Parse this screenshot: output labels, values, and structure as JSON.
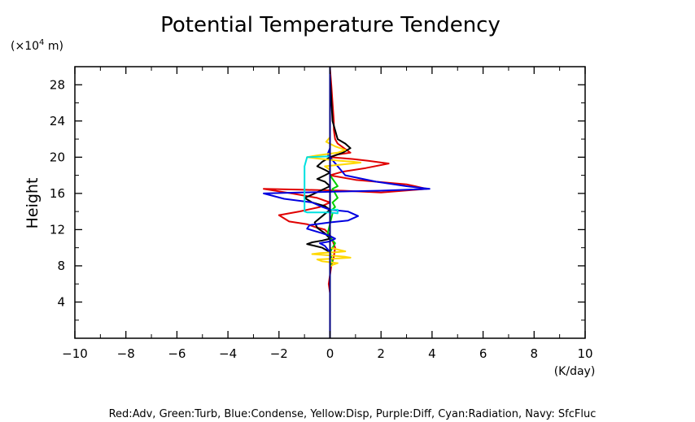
{
  "chart_data": {
    "type": "line",
    "title": "Potential Temperature Tendency",
    "xlabel": "",
    "ylabel": "Height",
    "x_unit_label": "(K/day)",
    "y_unit_label_prefix": "(×10",
    "y_unit_label_exp": "4",
    "y_unit_label_suffix": " m)",
    "xlim": [
      -10,
      10
    ],
    "ylim": [
      0,
      30
    ],
    "x_ticks": [
      "−10",
      "−8",
      "−6",
      "−4",
      "−2",
      "0",
      "2",
      "4",
      "6",
      "8",
      "10"
    ],
    "y_ticks": [
      "4",
      "8",
      "12",
      "16",
      "20",
      "24",
      "28"
    ],
    "footnote": "Red:Adv, Green:Turb, Blue:Condense, Yellow:Disp, Purple:Diff, Cyan:Radiation, Navy: SfcFluc",
    "series": [
      {
        "color": "#e00000",
        "x": [
          0,
          0.05,
          0.1,
          0.15,
          0.15,
          0.2,
          0.3,
          0.55,
          0.8,
          0.3,
          0.0,
          0.9,
          1.5,
          2.3,
          1.4,
          0.5,
          0.0,
          1.0,
          3.0,
          3.8,
          2.0,
          0.5,
          -1.0,
          -2.6,
          -1.5,
          -0.5,
          0.0,
          -0.4,
          -1.2,
          -2.0,
          -1.6,
          -0.9,
          -0.6,
          -0.2,
          0.0,
          0.1,
          0.2,
          0.15,
          0.05,
          0.0,
          -0.05,
          0.0,
          0.0
        ],
        "y": [
          29.8,
          28.0,
          26.0,
          24.0,
          23.0,
          22.0,
          21.5,
          21.0,
          20.5,
          20.3,
          20.0,
          19.8,
          19.6,
          19.3,
          18.8,
          18.4,
          18.0,
          17.5,
          17.0,
          16.5,
          16.1,
          16.3,
          16.4,
          16.5,
          16.0,
          15.5,
          15.0,
          14.5,
          14.0,
          13.6,
          12.9,
          12.6,
          12.3,
          12.0,
          11.4,
          10.8,
          10.0,
          9.0,
          8.0,
          7.0,
          6.0,
          5.0,
          0.3
        ]
      },
      {
        "color": "#000000",
        "x": [
          0,
          0.1,
          0.3,
          0.6,
          0.8,
          0.5,
          0.0,
          -0.3,
          -0.5,
          -0.2,
          0.0,
          -0.2,
          -0.5,
          -0.2,
          0.0,
          -0.3,
          -0.6,
          -1.0,
          -0.7,
          -0.2,
          0.0,
          -0.3,
          -0.6,
          -0.5,
          -0.2,
          0.0,
          -0.3,
          -0.7,
          -0.9,
          -0.6,
          -0.3,
          0.0,
          0.0
        ],
        "y": [
          29.0,
          24.0,
          22.0,
          21.5,
          21.0,
          20.5,
          20.0,
          19.5,
          19.0,
          18.6,
          18.3,
          18.0,
          17.6,
          17.3,
          16.8,
          16.4,
          16.0,
          15.5,
          15.0,
          14.6,
          14.2,
          13.5,
          12.8,
          12.2,
          11.6,
          11.0,
          10.8,
          10.6,
          10.4,
          10.2,
          10.0,
          9.5,
          0.5
        ]
      },
      {
        "color": "#00d000",
        "x": [
          0,
          0.2,
          0.3,
          0.1,
          0.2,
          0.3,
          0.1,
          0.2,
          0.0,
          0.1,
          -0.1,
          0.2,
          0.0,
          0.1,
          0.0,
          0.0
        ],
        "y": [
          18.0,
          17.2,
          16.8,
          16.5,
          16.0,
          15.5,
          15.0,
          14.5,
          14.0,
          13.8,
          11.5,
          10.5,
          9.5,
          8.5,
          8.0,
          7.5
        ]
      },
      {
        "color": "#0000e0",
        "x": [
          0,
          -0.1,
          0.0,
          0.6,
          1.8,
          3.0,
          3.9,
          2.0,
          0.3,
          -1.2,
          -2.6,
          -1.8,
          -0.7,
          -0.3,
          0.0,
          0.7,
          1.1,
          0.7,
          0.0,
          -0.8,
          -0.9,
          -0.3,
          0.0,
          0.2,
          0.0,
          -0.4,
          -0.2,
          0.0,
          0.0
        ],
        "y": [
          21.0,
          20.3,
          20.0,
          18.0,
          17.3,
          16.8,
          16.5,
          16.3,
          16.2,
          16.1,
          16.0,
          15.4,
          15.0,
          14.5,
          14.2,
          14.0,
          13.5,
          13.0,
          12.8,
          12.5,
          12.1,
          11.6,
          11.3,
          11.0,
          10.7,
          10.5,
          10.2,
          9.5,
          9.0
        ]
      },
      {
        "color": "#ffd800",
        "x": [
          0,
          -0.15,
          0.2,
          0.6,
          0.3,
          -0.5,
          -0.9,
          -0.3,
          0.4,
          0.9,
          1.2,
          0.5,
          -0.2,
          0.0,
          0.0,
          0.3,
          0.6,
          0.2,
          -0.4,
          -0.7,
          -0.2,
          0.6,
          0.8,
          0.2,
          -0.5,
          -0.3,
          0.3,
          0.1,
          0.0
        ],
        "y": [
          22.2,
          21.7,
          21.2,
          20.8,
          20.5,
          20.2,
          20.0,
          19.8,
          19.6,
          19.5,
          19.4,
          19.2,
          19.0,
          18.6,
          10.0,
          9.8,
          9.6,
          9.5,
          9.4,
          9.3,
          9.2,
          9.0,
          8.9,
          8.8,
          8.7,
          8.5,
          8.3,
          8.1,
          7.9
        ]
      },
      {
        "color": "#00e0e0",
        "x": [
          0,
          -0.9,
          -1.0,
          -1.0,
          -0.9,
          0.0,
          0.3,
          0.3,
          0.0
        ],
        "y": [
          20.1,
          20.0,
          19.0,
          14.0,
          13.9,
          13.9,
          13.8,
          14.2,
          14.2
        ]
      },
      {
        "color": "#000080",
        "x": [
          0,
          0
        ],
        "y": [
          0,
          30
        ]
      }
    ]
  }
}
